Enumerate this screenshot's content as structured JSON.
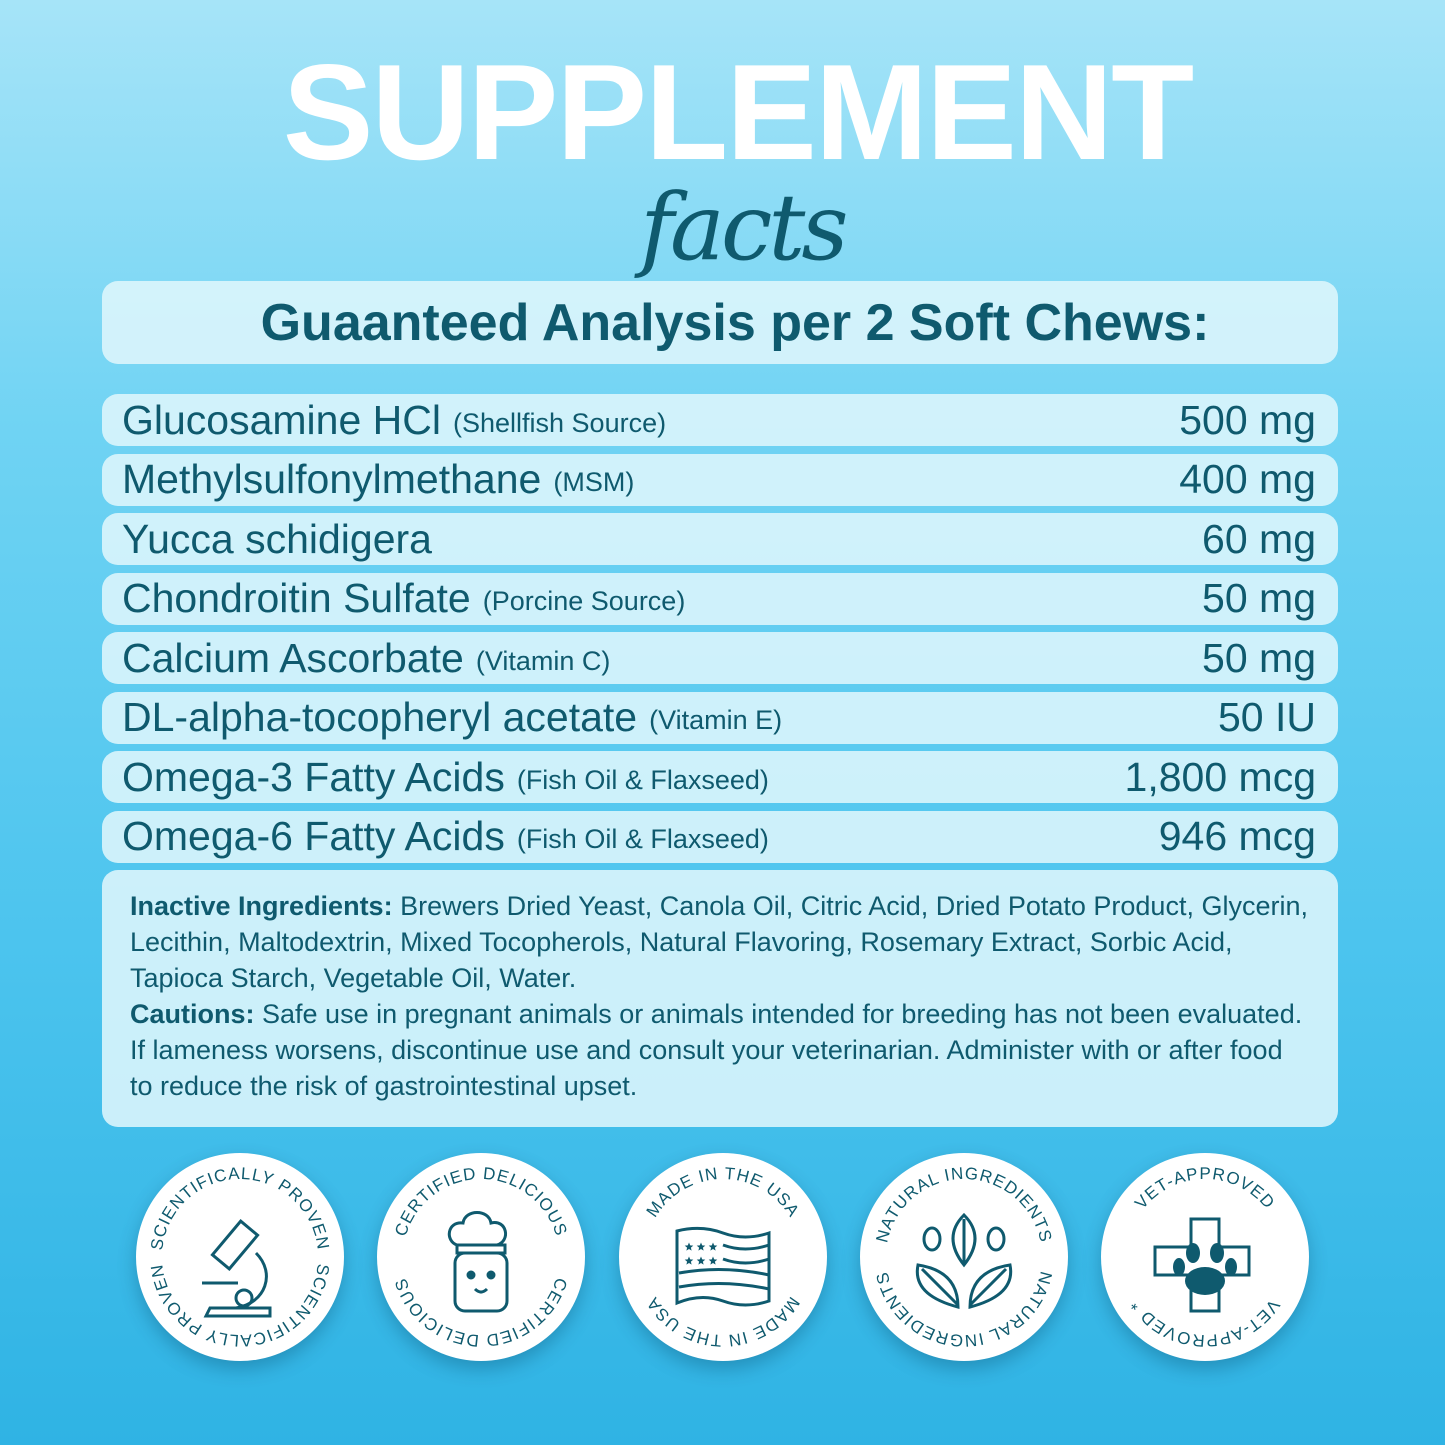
{
  "title": "SUPPLEMENT",
  "subtitle": "facts",
  "header": "Guaanteed Analysis per 2 Soft Chews:",
  "ingredients": [
    {
      "name": "Glucosamine HCl",
      "note": "(Shellfish Source)",
      "amount": "500 mg"
    },
    {
      "name": "Methylsulfonylmethane",
      "note": "(MSM)",
      "amount": "400 mg"
    },
    {
      "name": "Yucca schidigera",
      "note": "",
      "amount": "60 mg"
    },
    {
      "name": "Chondroitin Sulfate",
      "note": "(Porcine Source)",
      "amount": "50 mg"
    },
    {
      "name": "Calcium Ascorbate",
      "note": "(Vitamin C)",
      "amount": "50 mg"
    },
    {
      "name": "DL-alpha-tocopheryl acetate",
      "note": "(Vitamin E)",
      "amount": "50 IU"
    },
    {
      "name": "Omega-3 Fatty Acids",
      "note": "(Fish Oil & Flaxseed)",
      "amount": "1,800 mcg"
    },
    {
      "name": "Omega-6 Fatty Acids",
      "note": "(Fish Oil & Flaxseed)",
      "amount": "946 mcg"
    }
  ],
  "inactive": {
    "label": "Inactive Ingredients:",
    "text": "Brewers Dried Yeast, Canola Oil, Citric Acid, Dried Potato Product, Glycerin, Lecithin, Maltodextrin, Mixed Tocopherols, Natural Flavoring, Rosemary Extract, Sorbic Acid, Tapioca Starch, Vegetable Oil, Water."
  },
  "cautions": {
    "label": "Cautions:",
    "text": "Safe use in pregnant animals or animals intended for breeding has not been evaluated. If lameness worsens, discontinue use and consult your veterinarian. Administer with or after food to reduce the risk of gastrointestinal upset."
  },
  "badges": [
    {
      "top": "SCIENTIFICALLY PROVEN",
      "bottom": "SCIENTIFICALLY PROVEN",
      "icon": "microscope-icon"
    },
    {
      "top": "CERTIFIED DELICIOUS",
      "bottom": "CERTIFIED DELICIOUS",
      "icon": "chef-dog-icon"
    },
    {
      "top": "MADE IN THE USA",
      "bottom": "MADE IN THE USA",
      "icon": "us-flag-icon"
    },
    {
      "top": "NATURAL INGREDIENTS",
      "bottom": "NATURAL INGREDIENTS",
      "icon": "leaves-icon"
    },
    {
      "top": "VET-APPROVED",
      "bottom": "VET-APPROVED *",
      "icon": "vet-paw-cross-icon"
    }
  ],
  "colors": {
    "text": "#0f5a6e",
    "panel": "#def6fc",
    "background_top": "#a6e4f8",
    "background_bottom": "#2fb3e4"
  }
}
